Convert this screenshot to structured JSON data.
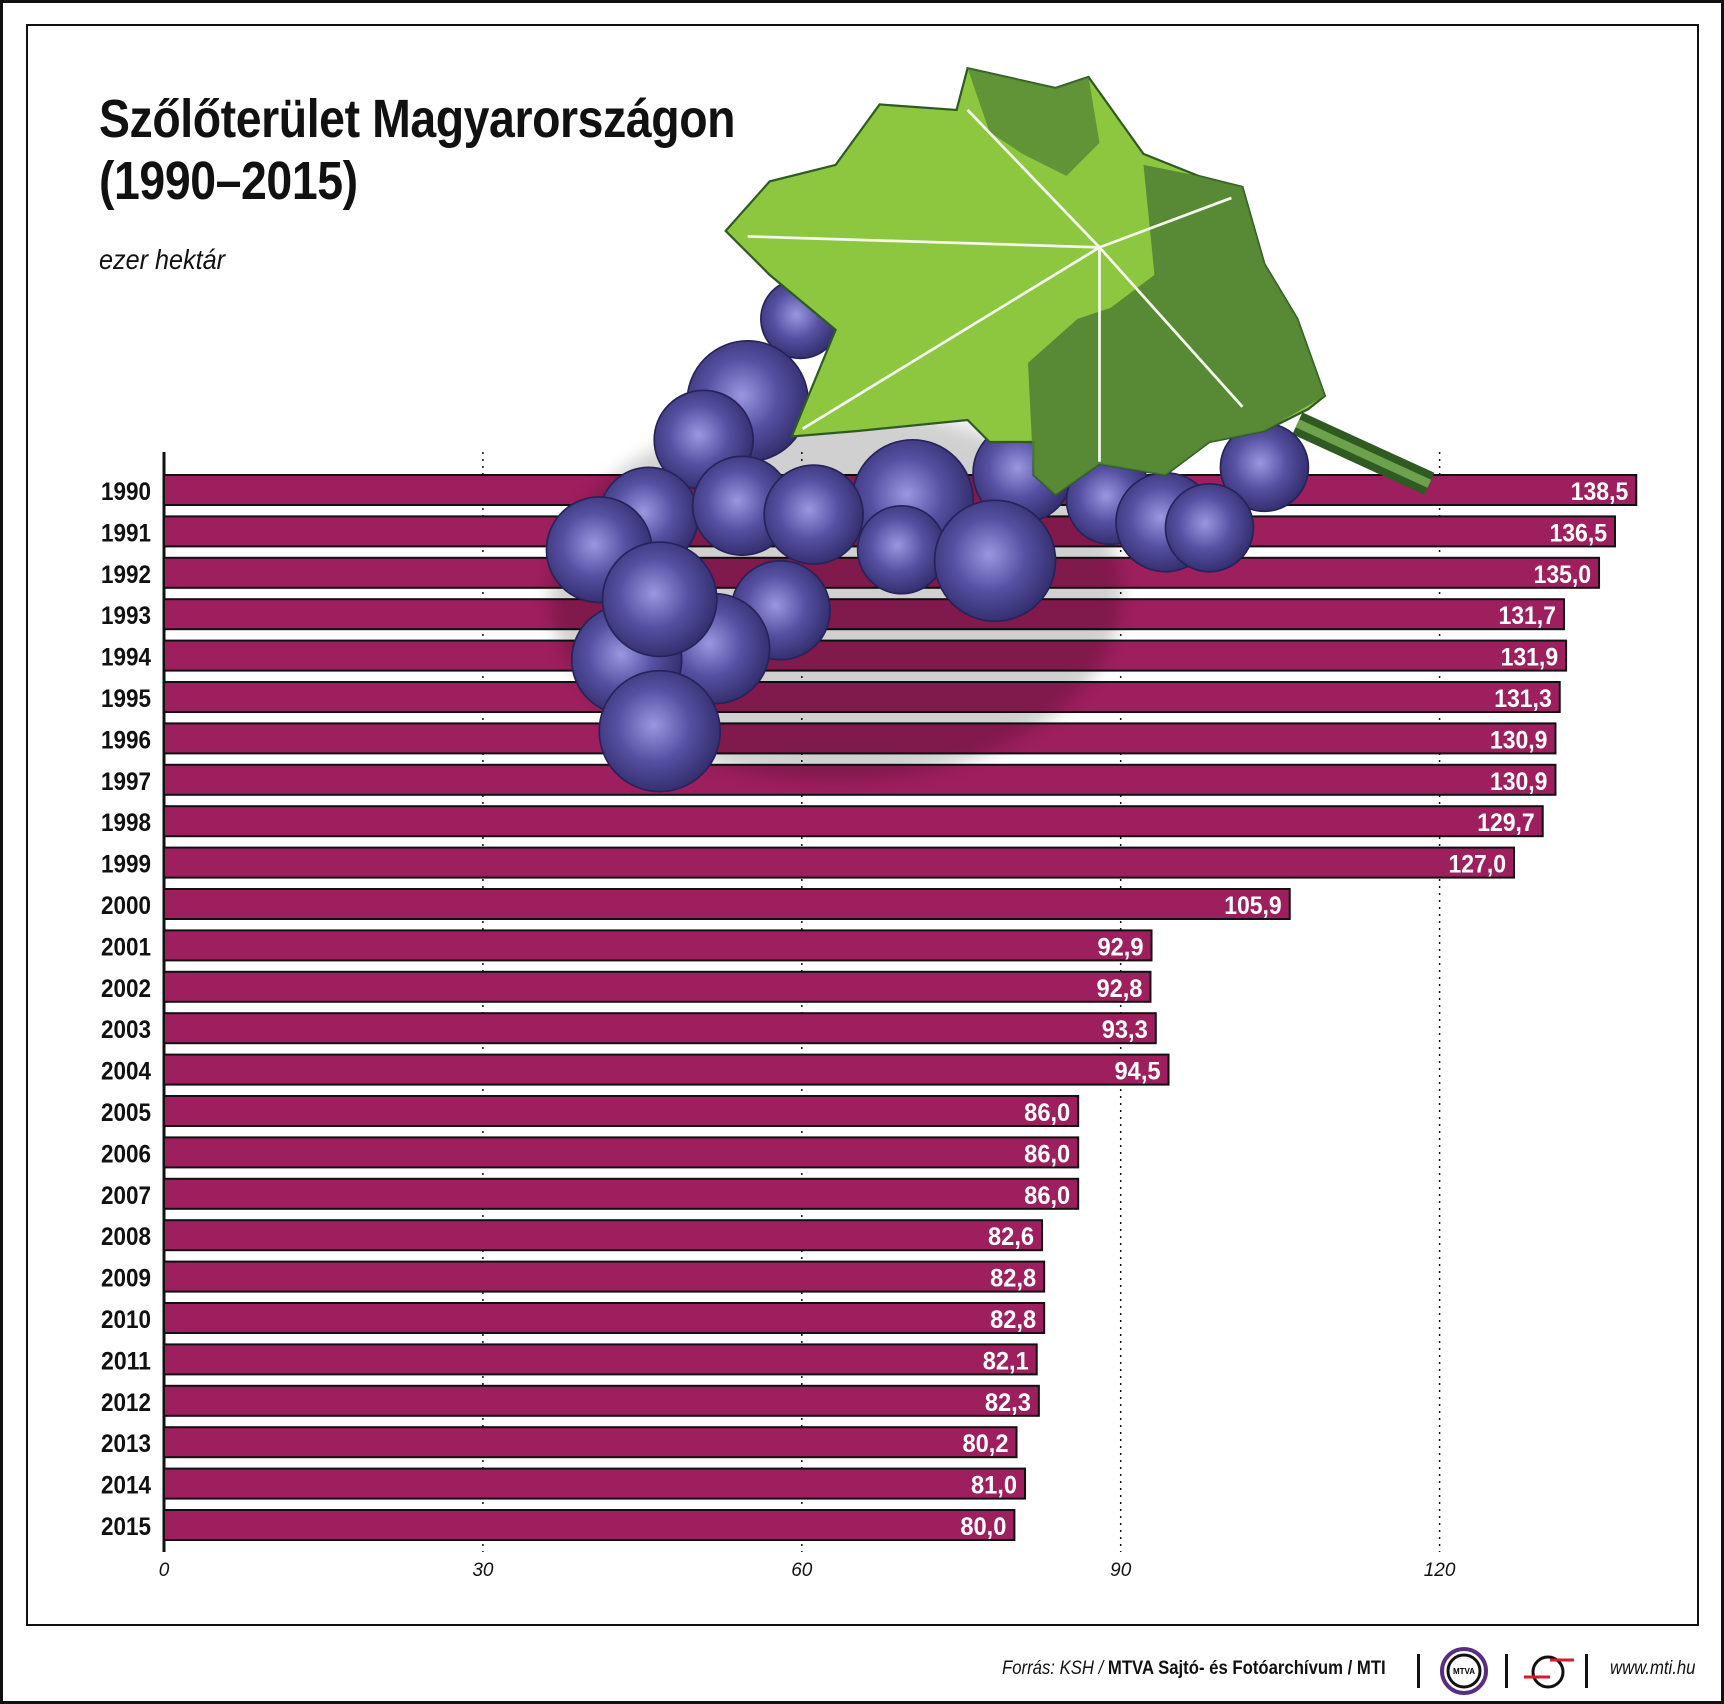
{
  "title_line1": "Szőlőterület Magyarországon",
  "title_line2": "(1990–2015)",
  "subtitle": "ezer hektár",
  "footer": {
    "source_prefix": "Forrás: KSH / ",
    "source_bold": "MTVA Sajtó- és Fotóarchívum / MTI",
    "mtva_logo_text": "MTVA",
    "url": "www.mti.hu"
  },
  "colors": {
    "bar": "#9e1f5e",
    "bar_border": "#111111",
    "grape": "#4f4a9a",
    "leaf": "#8dc63f",
    "leaf_dark": "#4f7f35"
  },
  "chart_data": {
    "type": "bar",
    "orientation": "horizontal",
    "title": "Szőlőterület Magyarországon (1990–2015)",
    "unit": "ezer hektár",
    "categories": [
      "1990",
      "1991",
      "1992",
      "1993",
      "1994",
      "1995",
      "1996",
      "1997",
      "1998",
      "1999",
      "2000",
      "2001",
      "2002",
      "2003",
      "2004",
      "2005",
      "2006",
      "2007",
      "2008",
      "2009",
      "2010",
      "2011",
      "2012",
      "2013",
      "2014",
      "2015"
    ],
    "values": [
      138.5,
      136.5,
      135.0,
      131.7,
      131.9,
      131.3,
      130.9,
      130.9,
      129.7,
      127.0,
      105.9,
      92.9,
      92.8,
      93.3,
      94.5,
      86.0,
      86.0,
      86.0,
      82.6,
      82.8,
      82.8,
      82.1,
      82.3,
      80.2,
      81.0,
      80.0
    ],
    "value_labels": [
      "138,5",
      "136,5",
      "135,0",
      "131,7",
      "131,9",
      "131,3",
      "130,9",
      "130,9",
      "129,7",
      "127,0",
      "105,9",
      "92,9",
      "92,8",
      "93,3",
      "94,5",
      "86,0",
      "86,0",
      "86,0",
      "82,6",
      "82,8",
      "82,8",
      "82,1",
      "82,3",
      "80,2",
      "81,0",
      "80,0"
    ],
    "xlim": [
      0,
      140
    ],
    "xticks": [
      0,
      30,
      60,
      90,
      120
    ],
    "xtick_labels": [
      "0",
      "30",
      "60",
      "90",
      "120"
    ],
    "grid": "vertical dotted"
  }
}
